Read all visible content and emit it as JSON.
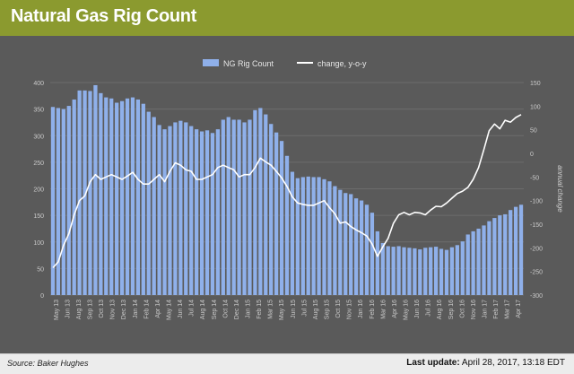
{
  "header": {
    "title": "Natural Gas Rig Count"
  },
  "footer": {
    "source": "Source: Baker Hughes",
    "last_update_label": "Last update:",
    "last_update_value": "April 28, 2017, 13:18 EDT"
  },
  "colors": {
    "header_bg": "#8b9a2f",
    "plot_bg": "#5a5a5a",
    "bar": "#8fb0ea",
    "line": "#ffffff",
    "grid": "#6c6c6c"
  },
  "chart_data": {
    "type": "bar",
    "title": "Natural Gas Rig Count",
    "x_tick_labels": [
      "May 13",
      "Jun 13",
      "Aug 13",
      "Sep 13",
      "Oct 13",
      "Nov 13",
      "Dec 13",
      "Jan 14",
      "Feb 14",
      "Apr 14",
      "May 14",
      "Jun 14",
      "Jul 14",
      "Aug 14",
      "Sep 14",
      "Oct 14",
      "Dec 14",
      "Jan 15",
      "Feb 15",
      "Mar 15",
      "May 15",
      "Jun 15",
      "Jul 15",
      "Aug 15",
      "Sep 15",
      "Oct 15",
      "Nov 15",
      "Jan 16",
      "Feb 16",
      "Mar 16",
      "Apr 16",
      "May 16",
      "Jun 16",
      "Jul 16",
      "Aug 16",
      "Sep 16",
      "Oct 16",
      "Nov 16",
      "Jan 17",
      "Feb 17",
      "Mar 17",
      "Apr 17"
    ],
    "y_left": {
      "ticks": [
        0,
        50,
        100,
        150,
        200,
        250,
        300,
        350,
        400
      ],
      "lim": [
        0,
        400
      ]
    },
    "y_right": {
      "ticks": [
        -300,
        -250,
        -200,
        -150,
        -100,
        -50,
        0,
        50,
        100,
        150
      ],
      "lim": [
        -300,
        150
      ],
      "label": "annual change"
    },
    "legend": {
      "placement": "top-center",
      "items": [
        "NG Rig Count",
        "change, y-o-y"
      ]
    },
    "series": [
      {
        "name": "NG Rig Count",
        "type": "bar",
        "axis": "left",
        "values": [
          354,
          352,
          350,
          356,
          368,
          385,
          385,
          384,
          395,
          380,
          372,
          370,
          362,
          365,
          370,
          372,
          368,
          360,
          345,
          335,
          320,
          312,
          318,
          325,
          328,
          325,
          318,
          312,
          308,
          310,
          305,
          312,
          330,
          335,
          330,
          330,
          325,
          330,
          348,
          352,
          340,
          322,
          306,
          290,
          262,
          232,
          220,
          222,
          223,
          222,
          222,
          218,
          214,
          205,
          198,
          192,
          190,
          182,
          178,
          170,
          155,
          120,
          98,
          92,
          91,
          92,
          90,
          89,
          88,
          86,
          89,
          90,
          91,
          87,
          85,
          90,
          94,
          101,
          114,
          120,
          125,
          131,
          139,
          145,
          150,
          152,
          160,
          166,
          170
        ]
      },
      {
        "name": "change, y-o-y",
        "type": "line",
        "axis": "right",
        "values": [
          -242,
          -230,
          -195,
          -170,
          -130,
          -100,
          -90,
          -60,
          -45,
          -55,
          -50,
          -45,
          -50,
          -55,
          -48,
          -40,
          -55,
          -65,
          -65,
          -55,
          -45,
          -60,
          -38,
          -20,
          -25,
          -35,
          -38,
          -55,
          -55,
          -50,
          -45,
          -30,
          -25,
          -30,
          -35,
          -50,
          -45,
          -45,
          -30,
          -10,
          -18,
          -25,
          -38,
          -52,
          -70,
          -92,
          -105,
          -108,
          -110,
          -110,
          -105,
          -100,
          -115,
          -128,
          -148,
          -145,
          -155,
          -162,
          -168,
          -175,
          -192,
          -218,
          -198,
          -180,
          -148,
          -130,
          -125,
          -130,
          -125,
          -126,
          -130,
          -120,
          -112,
          -113,
          -105,
          -95,
          -85,
          -80,
          -72,
          -55,
          -30,
          8,
          48,
          62,
          52,
          70,
          66,
          76,
          82
        ]
      }
    ]
  }
}
